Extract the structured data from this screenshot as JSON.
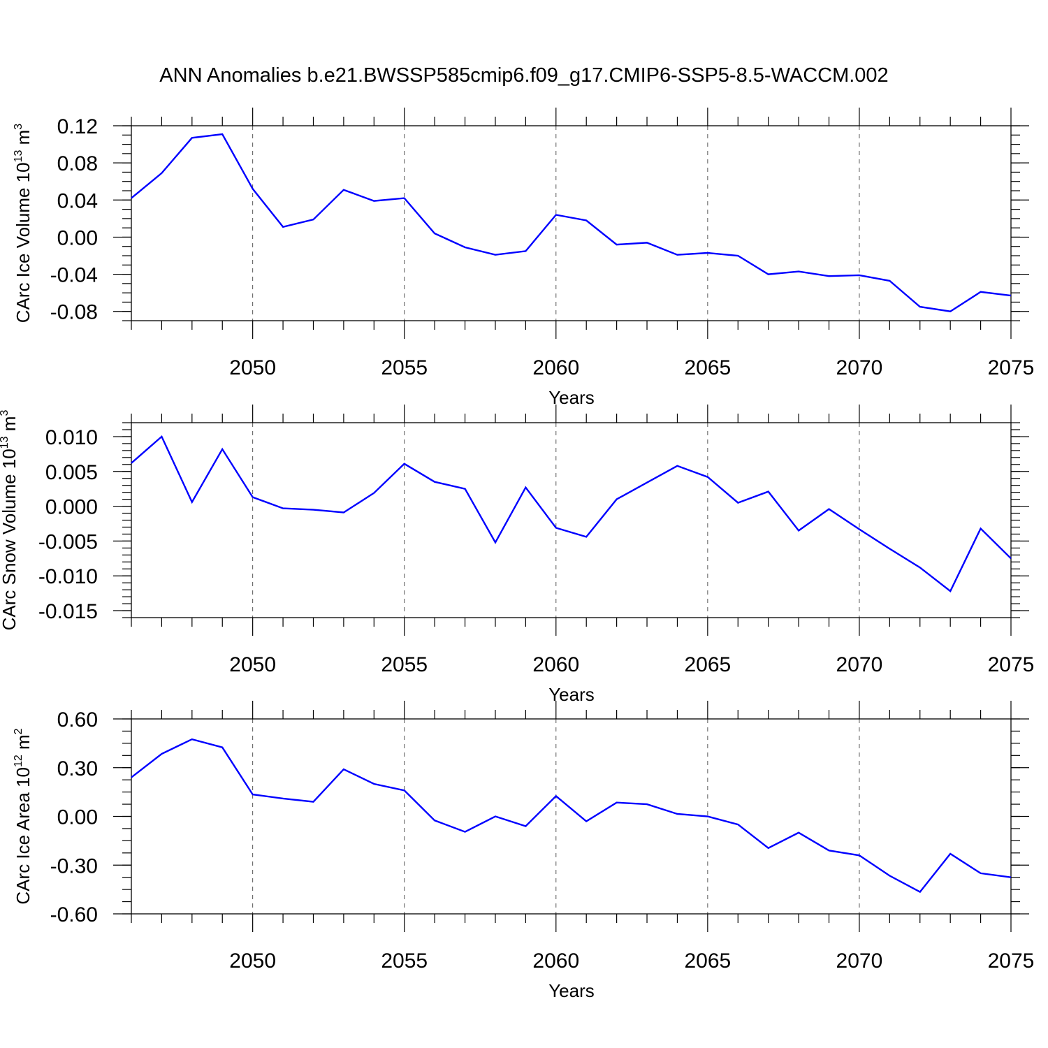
{
  "title": "ANN Anomalies b.e21.BWSSP585cmip6.f09_g17.CMIP6-SSP5-8.5-WACCM.002",
  "line_color": "#0000ff",
  "chart_data": [
    {
      "type": "line",
      "ylabel": "CArc Ice Volume 10",
      "ylabel_exp": "13",
      "ylabel_unit": "m",
      "ylabel_unit_exp": "3",
      "xlabel": "Years",
      "xlim": [
        2046,
        2075
      ],
      "ylim": [
        -0.09,
        0.12
      ],
      "yticks": [
        0.12,
        0.08,
        0.04,
        0.0,
        -0.04,
        -0.08
      ],
      "ytick_labels": [
        "0.12",
        "0.08",
        "0.04",
        "0.00",
        "-0.04",
        "-0.08"
      ],
      "yminor_step": 0.01,
      "xticks": [
        2050,
        2055,
        2060,
        2065,
        2070,
        2075
      ],
      "xtick_labels": [
        "2050",
        "2055",
        "2060",
        "2065",
        "2070",
        "2075"
      ],
      "grid": "vertical dashed at major x ticks",
      "x": [
        2046,
        2047,
        2048,
        2049,
        2050,
        2051,
        2052,
        2053,
        2054,
        2055,
        2056,
        2057,
        2058,
        2059,
        2060,
        2061,
        2062,
        2063,
        2064,
        2065,
        2066,
        2067,
        2068,
        2069,
        2070,
        2071,
        2072,
        2073,
        2074,
        2075
      ],
      "series": [
        {
          "values": [
            0.042,
            0.069,
            0.107,
            0.111,
            0.052,
            0.011,
            0.019,
            0.051,
            0.039,
            0.042,
            0.004,
            -0.011,
            -0.019,
            -0.015,
            0.024,
            0.018,
            -0.008,
            -0.006,
            -0.019,
            -0.017,
            -0.02,
            -0.04,
            -0.037,
            -0.042,
            -0.041,
            -0.047,
            -0.075,
            -0.08,
            -0.059,
            -0.063
          ]
        }
      ]
    },
    {
      "type": "line",
      "ylabel": "CArc Snow Volume 10",
      "ylabel_exp": "13",
      "ylabel_unit": "m",
      "ylabel_unit_exp": "3",
      "xlabel": "Years",
      "xlim": [
        2046,
        2075
      ],
      "ylim": [
        -0.016,
        0.012
      ],
      "yticks": [
        0.01,
        0.005,
        0.0,
        -0.005,
        -0.01,
        -0.015
      ],
      "ytick_labels": [
        "0.010",
        "0.005",
        "0.000",
        "-0.005",
        "-0.010",
        "-0.015"
      ],
      "yminor_step": 0.001,
      "xticks": [
        2050,
        2055,
        2060,
        2065,
        2070,
        2075
      ],
      "xtick_labels": [
        "2050",
        "2055",
        "2060",
        "2065",
        "2070",
        "2075"
      ],
      "grid": "vertical dashed at major x ticks",
      "x": [
        2046,
        2047,
        2048,
        2049,
        2050,
        2051,
        2052,
        2053,
        2054,
        2055,
        2056,
        2057,
        2058,
        2059,
        2060,
        2061,
        2062,
        2063,
        2064,
        2065,
        2066,
        2067,
        2068,
        2069,
        2070,
        2071,
        2072,
        2073,
        2074,
        2075
      ],
      "series": [
        {
          "values": [
            0.0062,
            0.01,
            0.0006,
            0.0082,
            0.0013,
            -0.0003,
            -0.0005,
            -0.0009,
            0.0019,
            0.0061,
            0.0035,
            0.0025,
            -0.0052,
            0.0027,
            -0.0031,
            -0.0044,
            0.001,
            0.0034,
            0.0058,
            0.0042,
            0.0005,
            0.0021,
            -0.0035,
            -0.0004,
            -0.0033,
            -0.0061,
            -0.0088,
            -0.0122,
            -0.0032,
            -0.0075
          ]
        }
      ]
    },
    {
      "type": "line",
      "ylabel": "CArc Ice Area 10",
      "ylabel_exp": "12",
      "ylabel_unit": "m",
      "ylabel_unit_exp": "2",
      "xlabel": "Years",
      "xlim": [
        2046,
        2075
      ],
      "ylim": [
        -0.6,
        0.6
      ],
      "yticks": [
        0.6,
        0.3,
        0.0,
        -0.3,
        -0.6
      ],
      "ytick_labels": [
        "0.60",
        "0.30",
        "0.00",
        "-0.30",
        "-0.60"
      ],
      "yminor_step": 0.075,
      "xticks": [
        2050,
        2055,
        2060,
        2065,
        2070,
        2075
      ],
      "xtick_labels": [
        "2050",
        "2055",
        "2060",
        "2065",
        "2070",
        "2075"
      ],
      "grid": "vertical dashed at major x ticks",
      "x": [
        2046,
        2047,
        2048,
        2049,
        2050,
        2051,
        2052,
        2053,
        2054,
        2055,
        2056,
        2057,
        2058,
        2059,
        2060,
        2061,
        2062,
        2063,
        2064,
        2065,
        2066,
        2067,
        2068,
        2069,
        2070,
        2071,
        2072,
        2073,
        2074,
        2075
      ],
      "series": [
        {
          "values": [
            0.24,
            0.385,
            0.475,
            0.425,
            0.135,
            0.11,
            0.09,
            0.29,
            0.2,
            0.16,
            -0.025,
            -0.095,
            0.0,
            -0.06,
            0.125,
            -0.03,
            0.085,
            0.075,
            0.015,
            0.0,
            -0.05,
            -0.195,
            -0.1,
            -0.21,
            -0.24,
            -0.365,
            -0.465,
            -0.23,
            -0.35,
            -0.375
          ]
        }
      ]
    }
  ]
}
